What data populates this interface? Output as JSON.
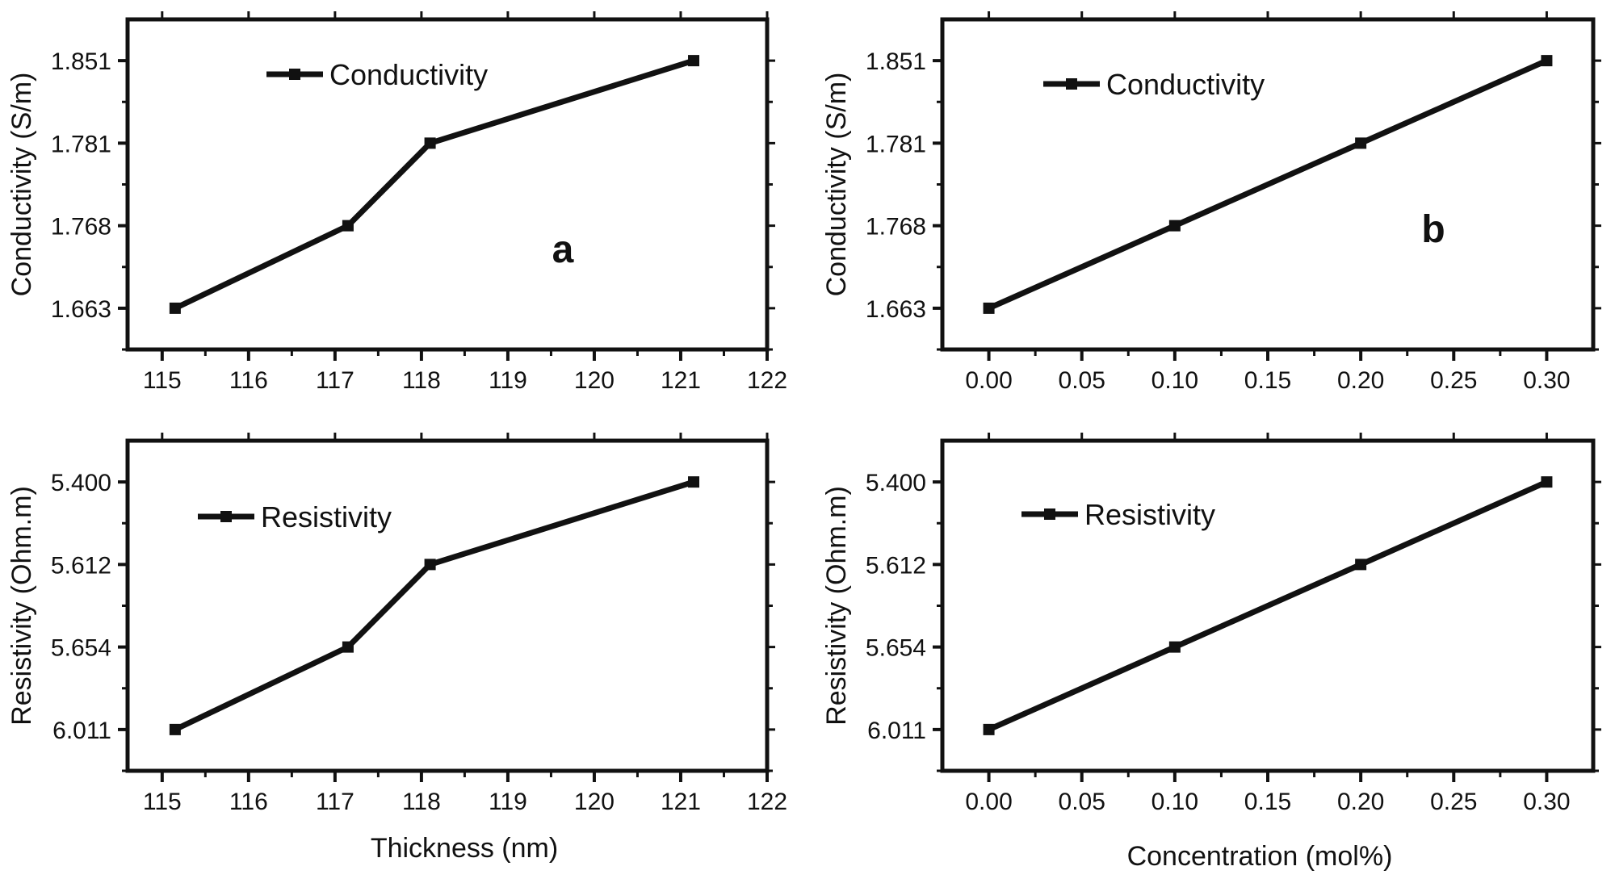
{
  "figure": {
    "xlabel_left": "Thickness (nm)",
    "xlabel_right": "Concentration (mol%)"
  },
  "chart_data": [
    {
      "type": "line",
      "panel": "a-top",
      "letter": "a",
      "xlabel": "",
      "ylabel": "Conductivity (S/m)",
      "xlim": [
        114.6,
        122
      ],
      "ylim": [
        -0.5,
        3.5
      ],
      "x_ticks": [
        115,
        116,
        117,
        118,
        119,
        120,
        121,
        122
      ],
      "x_tick_labels": [
        "115",
        "116",
        "117",
        "118",
        "119",
        "120",
        "121",
        "122"
      ],
      "y_tick_values": [
        0,
        1,
        2,
        3
      ],
      "y_tick_labels": [
        "1.663",
        "1.768",
        "1.781",
        "1.851"
      ],
      "legend": "Conductivity",
      "series": [
        {
          "name": "Conductivity",
          "x": [
            115.15,
            117.15,
            118.1,
            121.15
          ],
          "y": [
            0,
            1,
            2,
            3
          ]
        }
      ]
    },
    {
      "type": "line",
      "panel": "b-top",
      "letter": "b",
      "xlabel": "",
      "ylabel": "Conductivity (S/m)",
      "xlim": [
        -0.025,
        0.325
      ],
      "ylim": [
        -0.5,
        3.5
      ],
      "x_ticks": [
        0.0,
        0.05,
        0.1,
        0.15,
        0.2,
        0.25,
        0.3
      ],
      "x_tick_labels": [
        "0.00",
        "0.05",
        "0.10",
        "0.15",
        "0.20",
        "0.25",
        "0.30"
      ],
      "y_tick_values": [
        0,
        1,
        2,
        3
      ],
      "y_tick_labels": [
        "1.663",
        "1.768",
        "1.781",
        "1.851"
      ],
      "legend": "Conductivity",
      "series": [
        {
          "name": "Conductivity",
          "x": [
            0.0,
            0.1,
            0.2,
            0.3
          ],
          "y": [
            0,
            1,
            2,
            3
          ]
        }
      ]
    },
    {
      "type": "line",
      "panel": "a-bottom",
      "letter": "",
      "xlabel": "Thickness (nm)",
      "ylabel": "Resistivity (Ohm.m)",
      "xlim": [
        114.6,
        122
      ],
      "ylim": [
        -0.5,
        3.5
      ],
      "x_ticks": [
        115,
        116,
        117,
        118,
        119,
        120,
        121,
        122
      ],
      "x_tick_labels": [
        "115",
        "116",
        "117",
        "118",
        "119",
        "120",
        "121",
        "122"
      ],
      "y_tick_values": [
        0,
        1,
        2,
        3
      ],
      "y_tick_labels": [
        "6.011",
        "5.654",
        "5.612",
        "5.400"
      ],
      "legend": "Resistivity",
      "series": [
        {
          "name": "Resistivity",
          "x": [
            115.15,
            117.15,
            118.1,
            121.15
          ],
          "y": [
            0,
            1,
            2,
            3
          ]
        }
      ]
    },
    {
      "type": "line",
      "panel": "b-bottom",
      "letter": "",
      "xlabel": "Concentration (mol%)",
      "ylabel": "Resistivity (Ohm.m)",
      "xlim": [
        -0.025,
        0.325
      ],
      "ylim": [
        -0.5,
        3.5
      ],
      "x_ticks": [
        0.0,
        0.05,
        0.1,
        0.15,
        0.2,
        0.25,
        0.3
      ],
      "x_tick_labels": [
        "0.00",
        "0.05",
        "0.10",
        "0.15",
        "0.20",
        "0.25",
        "0.30"
      ],
      "y_tick_values": [
        0,
        1,
        2,
        3
      ],
      "y_tick_labels": [
        "6.011",
        "5.654",
        "5.612",
        "5.400"
      ],
      "legend": "Resistivity",
      "series": [
        {
          "name": "Resistivity",
          "x": [
            0.0,
            0.1,
            0.2,
            0.3
          ],
          "y": [
            0,
            1,
            2,
            3
          ]
        }
      ]
    }
  ]
}
